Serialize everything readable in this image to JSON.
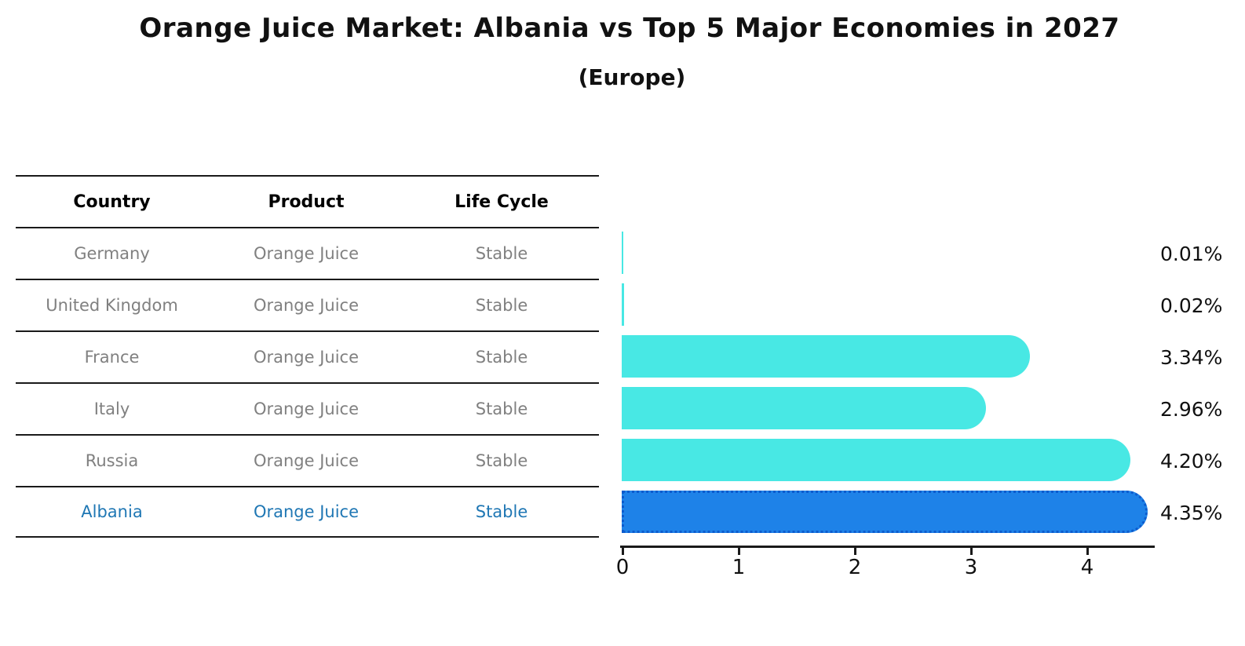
{
  "title": "Orange Juice Market: Albania vs Top 5 Major Economies in 2027",
  "subtitle": "(Europe)",
  "table": {
    "headers": [
      "Country",
      "Product",
      "Life Cycle"
    ],
    "rows": [
      {
        "country": "Germany",
        "product": "Orange Juice",
        "life_cycle": "Stable",
        "highlight": false
      },
      {
        "country": "United Kingdom",
        "product": "Orange Juice",
        "life_cycle": "Stable",
        "highlight": false
      },
      {
        "country": "France",
        "product": "Orange Juice",
        "life_cycle": "Stable",
        "highlight": false
      },
      {
        "country": "Italy",
        "product": "Orange Juice",
        "life_cycle": "Stable",
        "highlight": false
      },
      {
        "country": "Russia",
        "product": "Orange Juice",
        "life_cycle": "Stable",
        "highlight": false
      },
      {
        "country": "Albania",
        "product": "Orange Juice",
        "life_cycle": "Stable",
        "highlight": true
      }
    ]
  },
  "chart_data": {
    "type": "bar",
    "orientation": "horizontal",
    "title": "Orange Juice Market: Albania vs Top 5 Major Economies in 2027",
    "subtitle": "(Europe)",
    "categories": [
      "Germany",
      "United Kingdom",
      "France",
      "Italy",
      "Russia",
      "Albania"
    ],
    "values": [
      0.01,
      0.02,
      3.34,
      2.96,
      4.2,
      4.35
    ],
    "value_labels": [
      "0.01%",
      "0.02%",
      "3.34%",
      "2.96%",
      "4.20%",
      "4.35%"
    ],
    "x_ticks": [
      "0",
      "1",
      "2",
      "3",
      "4"
    ],
    "xlim": [
      0,
      4.6
    ],
    "grid": false,
    "legend": false,
    "bar_color": "#48E8E4",
    "highlight_index": 5,
    "highlight_color": "#1E82E8",
    "highlight_edge_color": "#0C5BCD",
    "highlight_text_color": "#1f77b4",
    "row_text_color": "#808080"
  }
}
